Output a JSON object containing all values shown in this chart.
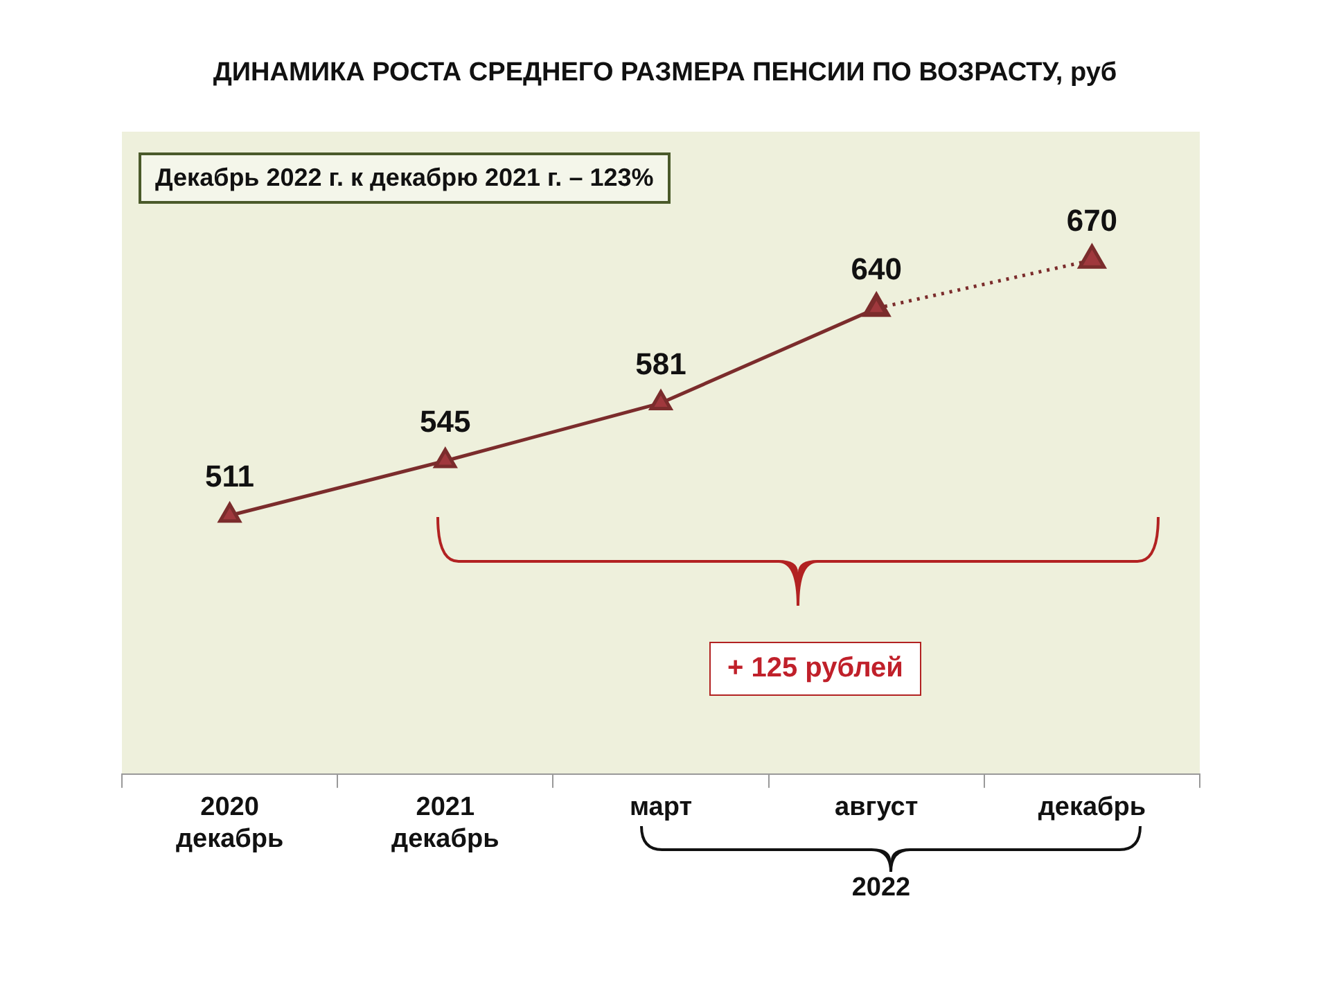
{
  "chart_data": {
    "type": "line",
    "title": "ДИНАМИКА РОСТА СРЕДНЕГО РАЗМЕРА ПЕНСИИ ПО ВОЗРАСТУ, руб",
    "categories": [
      "2020 декабрь",
      "2021 декабрь",
      "март",
      "август",
      "декабрь"
    ],
    "series": [
      {
        "color": "#7b2c2c",
        "values": [
          511,
          545,
          581,
          640,
          null
        ],
        "value_labels": [
          "511",
          "545",
          "581",
          "640",
          null
        ],
        "marker": "triangle",
        "line_style": "solid"
      },
      {
        "color": "#7b2c2c",
        "values": [
          null,
          null,
          null,
          640,
          670
        ],
        "value_labels": [
          null,
          null,
          null,
          null,
          "670"
        ],
        "marker": "triangle",
        "line_style": "dotted"
      }
    ],
    "legend": false,
    "grid": false,
    "annotations": [
      "Декабрь 2022 г. к декабрю 2021 г.  – 123%",
      "+ 125 рублей",
      "2022"
    ]
  }
}
